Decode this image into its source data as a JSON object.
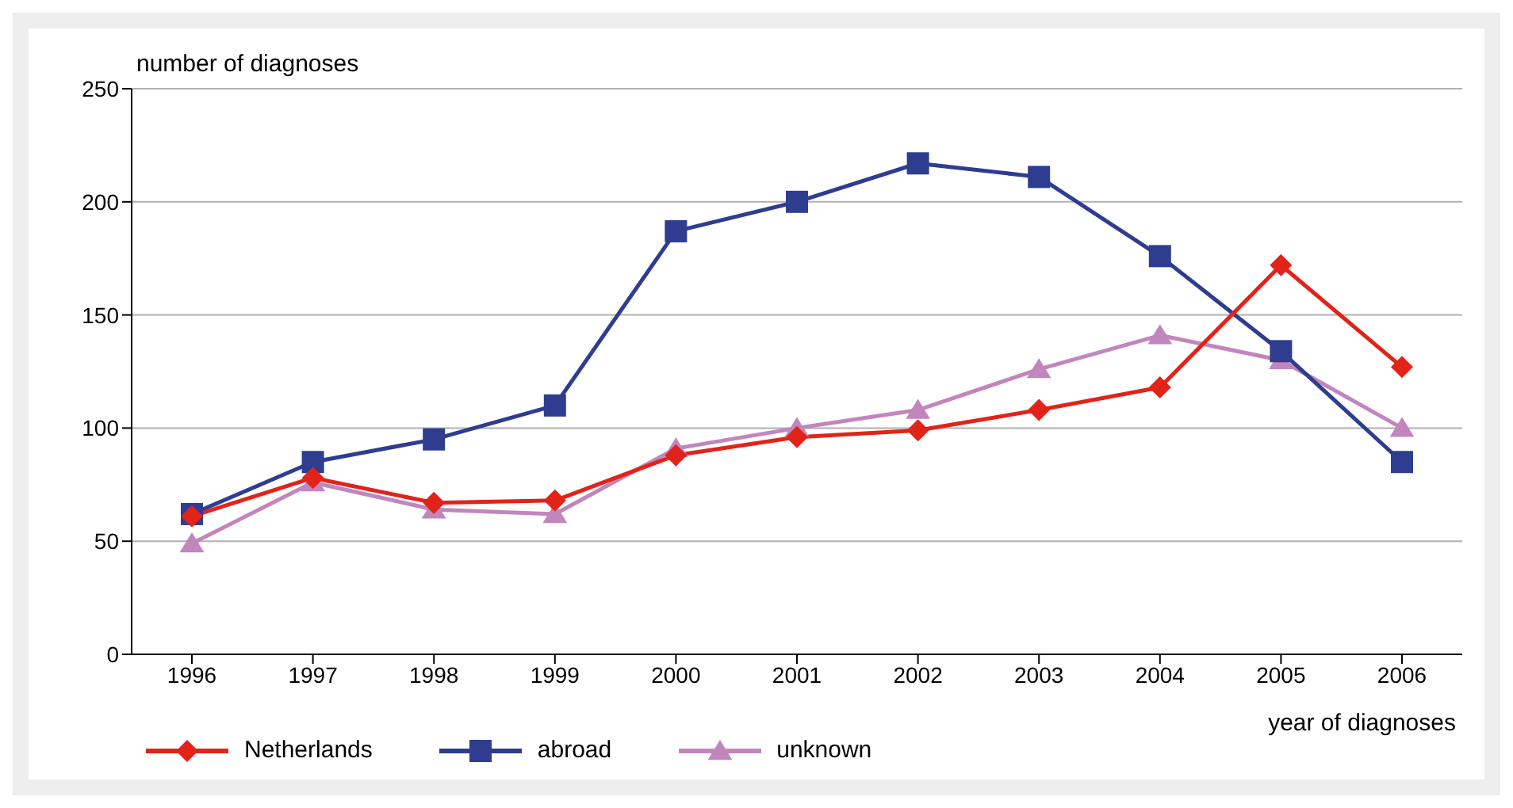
{
  "chart_data": {
    "type": "line",
    "ylabel": "number of diagnoses",
    "xlabel": "year of diagnoses",
    "categories": [
      "1996",
      "1997",
      "1998",
      "1999",
      "2000",
      "2001",
      "2002",
      "2003",
      "2004",
      "2005",
      "2006"
    ],
    "series": [
      {
        "name": "Netherlands",
        "color": "#e2231a",
        "marker": "diamond",
        "values": [
          61,
          78,
          67,
          68,
          88,
          96,
          99,
          108,
          118,
          172,
          127
        ]
      },
      {
        "name": "abroad",
        "color": "#2e3d8f",
        "marker": "square",
        "values": [
          62,
          85,
          95,
          110,
          187,
          200,
          217,
          211,
          176,
          134,
          85
        ]
      },
      {
        "name": "unknown",
        "color": "#c285bd",
        "marker": "triangle",
        "values": [
          49,
          76,
          64,
          62,
          91,
          100,
          108,
          126,
          141,
          130,
          100
        ]
      }
    ],
    "ylim": [
      0,
      250
    ],
    "yticks": [
      0,
      50,
      100,
      150,
      200,
      250
    ],
    "grid": "y",
    "legend": "bottom left",
    "line_style": "solid"
  }
}
